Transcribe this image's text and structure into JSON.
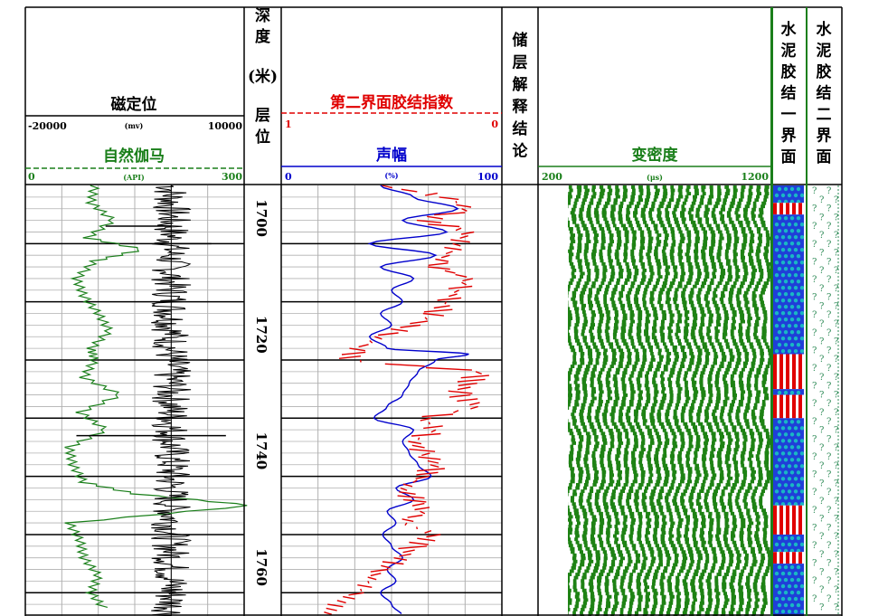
{
  "colors": {
    "black": "#000000",
    "green": "#1a7f1a",
    "red": "#e00000",
    "blue": "#0000cc",
    "grid": "#b0b0b0",
    "vdl": "#1e8214",
    "bond_blue": "#1f3fd8",
    "bond_dot": "#19b7c4",
    "bond_red": "#e00000",
    "question": "#2e8b57"
  },
  "tracks": {
    "ccl": {
      "title": "磁定位",
      "unit": "(mv)",
      "scale_left": "-20000",
      "scale_right": "10000"
    },
    "gr": {
      "title": "自然伽马",
      "unit": "(API)",
      "scale_left": "0",
      "scale_right": "300"
    },
    "depth": {
      "header_chars": [
        "深",
        "度",
        "(米)",
        "层",
        "位"
      ],
      "labels": [
        "1700",
        "1720",
        "1740",
        "1760"
      ]
    },
    "cbi2": {
      "title": "第二界面胶结指数",
      "scale_left": "1",
      "scale_right": "0"
    },
    "amp": {
      "title": "声幅",
      "unit": "(%)",
      "scale_left": "0",
      "scale_right": "100"
    },
    "interp": {
      "header_chars": [
        "储",
        "层",
        "解",
        "释",
        "结",
        "论"
      ]
    },
    "vdl": {
      "title": "变密度",
      "unit": "(μs)",
      "scale_left": "200",
      "scale_right": "1200"
    },
    "bond1": {
      "header_chars": [
        "水",
        "泥",
        "胶",
        "结",
        "一",
        "界",
        "面"
      ]
    },
    "bond2": {
      "header_chars": [
        "水",
        "泥",
        "胶",
        "结",
        "二",
        "界",
        "面"
      ],
      "symbol": "?"
    }
  },
  "chart_data": [
    {
      "type": "line",
      "name": "gamma_ray",
      "x_unit": "API",
      "xlim": [
        0,
        300
      ],
      "depth": [
        1690,
        1693,
        1696,
        1699,
        1701,
        1703,
        1706,
        1709,
        1712,
        1715,
        1718,
        1720,
        1723,
        1726,
        1729,
        1732,
        1735,
        1738,
        1741,
        1743,
        1745,
        1748,
        1751,
        1754,
        1757,
        1760,
        1763
      ],
      "values": [
        95,
        90,
        120,
        85,
        160,
        95,
        70,
        80,
        100,
        115,
        90,
        95,
        80,
        130,
        75,
        110,
        60,
        65,
        80,
        150,
        310,
        60,
        75,
        80,
        100,
        90,
        110
      ]
    },
    {
      "type": "line",
      "name": "ccl",
      "x_unit": "mv",
      "xlim": [
        -20000,
        10000
      ],
      "baseline": 0,
      "spikes": [
        {
          "depth": 1697,
          "value": -9000
        },
        {
          "depth": 1700,
          "value": 5500
        },
        {
          "depth": 1733,
          "value": -13000
        },
        {
          "depth": 1733,
          "value": 7500
        },
        {
          "depth": 1760,
          "value": -10000
        },
        {
          "depth": 1760,
          "value": 8500
        }
      ]
    },
    {
      "type": "line",
      "name": "amplitude",
      "x_unit": "%",
      "xlim": [
        0,
        100
      ],
      "depth": [
        1690,
        1692,
        1694,
        1696,
        1698,
        1700,
        1702,
        1704,
        1706,
        1708,
        1710,
        1712,
        1714,
        1716,
        1718,
        1719,
        1720,
        1722,
        1724,
        1726,
        1728,
        1730,
        1732,
        1734,
        1736,
        1738,
        1740,
        1742,
        1744,
        1746,
        1748,
        1750,
        1752,
        1754,
        1756,
        1758,
        1760,
        1762,
        1764
      ],
      "values": [
        45,
        60,
        80,
        55,
        75,
        40,
        70,
        45,
        60,
        50,
        55,
        45,
        50,
        40,
        48,
        85,
        70,
        62,
        58,
        55,
        48,
        42,
        60,
        55,
        58,
        62,
        68,
        52,
        60,
        48,
        52,
        46,
        50,
        55,
        48,
        52,
        45,
        50,
        55
      ]
    },
    {
      "type": "line",
      "name": "second_interface_bond_index",
      "xlim": [
        1,
        0
      ],
      "depth": [
        1690,
        1692,
        1694,
        1696,
        1698,
        1700,
        1702,
        1704,
        1706,
        1708,
        1710,
        1712,
        1714,
        1716,
        1718,
        1720,
        1722,
        1724,
        1726,
        1728,
        1730,
        1732,
        1734,
        1736,
        1738,
        1740,
        1742,
        1744,
        1746,
        1748,
        1750,
        1752,
        1754,
        1756,
        1758,
        1760,
        1762,
        1764
      ],
      "values": [
        0.55,
        0.25,
        0.15,
        0.35,
        0.15,
        0.2,
        0.25,
        0.3,
        0.15,
        0.2,
        0.25,
        0.3,
        0.4,
        0.55,
        0.65,
        0.7,
        0.1,
        0.15,
        0.2,
        0.1,
        0.35,
        0.3,
        0.4,
        0.35,
        0.3,
        0.35,
        0.45,
        0.4,
        0.35,
        0.45,
        0.3,
        0.4,
        0.45,
        0.55,
        0.6,
        0.65,
        0.75,
        0.8
      ]
    },
    {
      "type": "heatmap",
      "name": "vdl",
      "x_unit": "μs",
      "xlim": [
        200,
        1200
      ],
      "wave_period_us": 40
    },
    {
      "type": "table",
      "name": "first_interface_bond",
      "intervals": [
        {
          "top": 1690,
          "bottom": 1693,
          "class": "good"
        },
        {
          "top": 1693,
          "bottom": 1695,
          "class": "poor"
        },
        {
          "top": 1695,
          "bottom": 1719,
          "class": "good"
        },
        {
          "top": 1719,
          "bottom": 1725,
          "class": "poor"
        },
        {
          "top": 1725,
          "bottom": 1726,
          "class": "good"
        },
        {
          "top": 1726,
          "bottom": 1730,
          "class": "poor"
        },
        {
          "top": 1730,
          "bottom": 1745,
          "class": "good"
        },
        {
          "top": 1745,
          "bottom": 1750,
          "class": "poor"
        },
        {
          "top": 1750,
          "bottom": 1753,
          "class": "good"
        },
        {
          "top": 1753,
          "bottom": 1755,
          "class": "poor"
        },
        {
          "top": 1755,
          "bottom": 1764,
          "class": "good"
        }
      ]
    }
  ],
  "depth_range": [
    1690,
    1764
  ]
}
